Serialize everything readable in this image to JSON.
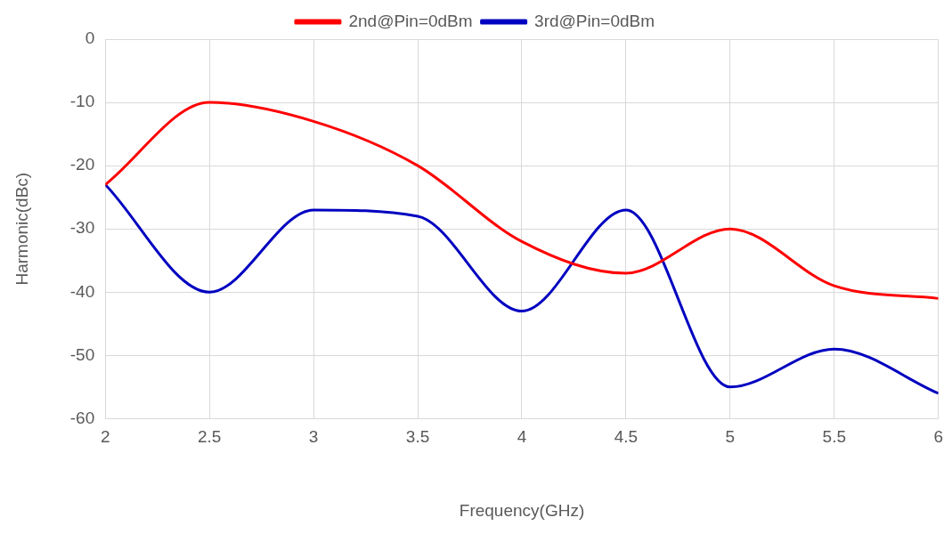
{
  "chart_data": {
    "type": "line",
    "xlabel": "Frequency(GHz)",
    "ylabel": "Harmonic(dBc)",
    "x": [
      2,
      2.5,
      3,
      3.5,
      4,
      4.5,
      5,
      5.5,
      6
    ],
    "series": [
      {
        "name": "2nd@Pin=0dBm",
        "color": "#ff0000",
        "values": [
          -23,
          -10,
          -13,
          -20,
          -32,
          -37,
          -30,
          -39,
          -41
        ]
      },
      {
        "name": "3rd@Pin=0dBm",
        "color": "#0000c0",
        "values": [
          -23,
          -40,
          -27,
          -28,
          -43,
          -27,
          -55,
          -49,
          -56
        ]
      }
    ],
    "xlim": [
      2,
      6
    ],
    "xticks": [
      2,
      2.5,
      3,
      3.5,
      4,
      4.5,
      5,
      5.5,
      6
    ],
    "ylim": [
      -60,
      0
    ],
    "yticks": [
      -60,
      -50,
      -40,
      -30,
      -20,
      -10,
      0
    ],
    "grid": true,
    "legend": "top",
    "marker": "none",
    "line_style": "solid"
  }
}
